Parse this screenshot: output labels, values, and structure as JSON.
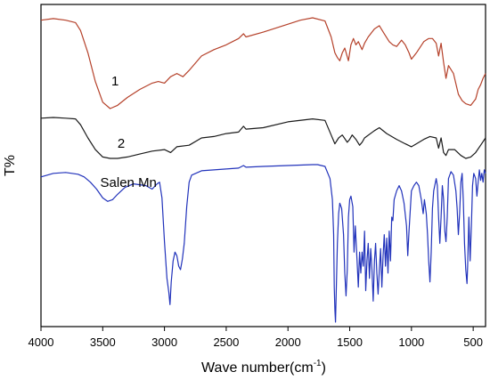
{
  "chart_data": {
    "type": "line",
    "title": "",
    "xlabel": "Wave number(cm",
    "xlabel_sup": "-1",
    "xlabel_close": ")",
    "ylabel": "T%",
    "xlim": [
      4000,
      400
    ],
    "x_reversed": true,
    "y_ticks_shown": false,
    "grid": false,
    "x_ticks": [
      4000,
      3500,
      3000,
      2500,
      2000,
      1500,
      1000,
      500
    ],
    "x_tick_labels": [
      "4000",
      "3500",
      "3000",
      "2500",
      "2000",
      "1500",
      "1000",
      "500"
    ],
    "series": [
      {
        "name": "1",
        "color": "#b5412a",
        "label_at": [
          3400,
          1
        ],
        "points": [
          [
            4000,
            1.5
          ],
          [
            3900,
            0.5
          ],
          [
            3800,
            1.5
          ],
          [
            3720,
            3
          ],
          [
            3680,
            8
          ],
          [
            3620,
            22
          ],
          [
            3560,
            40
          ],
          [
            3500,
            53
          ],
          [
            3440,
            57
          ],
          [
            3380,
            55
          ],
          [
            3300,
            50
          ],
          [
            3200,
            45
          ],
          [
            3100,
            41
          ],
          [
            3050,
            40
          ],
          [
            3000,
            41
          ],
          [
            2950,
            37
          ],
          [
            2900,
            35
          ],
          [
            2850,
            37
          ],
          [
            2800,
            33
          ],
          [
            2700,
            24
          ],
          [
            2600,
            20
          ],
          [
            2500,
            17
          ],
          [
            2400,
            13
          ],
          [
            2360,
            10
          ],
          [
            2340,
            12
          ],
          [
            2200,
            9
          ],
          [
            2000,
            4
          ],
          [
            1900,
            1.5
          ],
          [
            1800,
            0
          ],
          [
            1700,
            2
          ],
          [
            1650,
            12
          ],
          [
            1620,
            22
          ],
          [
            1600,
            25
          ],
          [
            1580,
            27
          ],
          [
            1560,
            22
          ],
          [
            1540,
            19
          ],
          [
            1510,
            27
          ],
          [
            1490,
            17
          ],
          [
            1470,
            13
          ],
          [
            1450,
            17
          ],
          [
            1430,
            15
          ],
          [
            1400,
            20
          ],
          [
            1380,
            16
          ],
          [
            1350,
            12
          ],
          [
            1300,
            7
          ],
          [
            1260,
            5
          ],
          [
            1220,
            10
          ],
          [
            1180,
            15
          ],
          [
            1150,
            17
          ],
          [
            1120,
            18
          ],
          [
            1080,
            14
          ],
          [
            1050,
            17
          ],
          [
            1020,
            22
          ],
          [
            1000,
            26
          ],
          [
            960,
            22
          ],
          [
            900,
            15
          ],
          [
            860,
            13
          ],
          [
            830,
            13
          ],
          [
            800,
            16
          ],
          [
            780,
            24
          ],
          [
            760,
            16
          ],
          [
            740,
            28
          ],
          [
            720,
            38
          ],
          [
            700,
            30
          ],
          [
            660,
            35
          ],
          [
            620,
            48
          ],
          [
            590,
            52
          ],
          [
            560,
            54
          ],
          [
            520,
            55
          ],
          [
            480,
            51
          ],
          [
            460,
            45
          ],
          [
            440,
            42
          ],
          [
            420,
            38
          ],
          [
            400,
            35
          ]
        ]
      },
      {
        "name": "2",
        "color": "#1a1a1a",
        "label_at": [
          3350,
          2
        ],
        "points": [
          [
            4000,
            0.5
          ],
          [
            3900,
            0
          ],
          [
            3800,
            0.5
          ],
          [
            3720,
            1
          ],
          [
            3680,
            5
          ],
          [
            3620,
            14
          ],
          [
            3560,
            22
          ],
          [
            3500,
            27
          ],
          [
            3440,
            28
          ],
          [
            3380,
            28
          ],
          [
            3300,
            27
          ],
          [
            3200,
            25
          ],
          [
            3100,
            23
          ],
          [
            3000,
            22
          ],
          [
            2950,
            24
          ],
          [
            2900,
            20
          ],
          [
            2800,
            19
          ],
          [
            2700,
            14
          ],
          [
            2600,
            13
          ],
          [
            2500,
            11
          ],
          [
            2400,
            10
          ],
          [
            2360,
            6
          ],
          [
            2340,
            8
          ],
          [
            2200,
            7
          ],
          [
            2000,
            3
          ],
          [
            1800,
            1
          ],
          [
            1700,
            2
          ],
          [
            1650,
            12
          ],
          [
            1620,
            18
          ],
          [
            1590,
            14
          ],
          [
            1560,
            12
          ],
          [
            1520,
            17
          ],
          [
            1500,
            15
          ],
          [
            1480,
            12
          ],
          [
            1450,
            15
          ],
          [
            1420,
            19
          ],
          [
            1400,
            17
          ],
          [
            1380,
            14
          ],
          [
            1300,
            9
          ],
          [
            1260,
            7
          ],
          [
            1200,
            11
          ],
          [
            1120,
            15
          ],
          [
            1050,
            18
          ],
          [
            1000,
            20
          ],
          [
            960,
            18
          ],
          [
            900,
            15
          ],
          [
            850,
            13
          ],
          [
            800,
            14
          ],
          [
            780,
            21
          ],
          [
            760,
            14
          ],
          [
            740,
            24
          ],
          [
            720,
            26
          ],
          [
            700,
            22
          ],
          [
            650,
            22
          ],
          [
            600,
            26
          ],
          [
            560,
            28
          ],
          [
            520,
            27
          ],
          [
            480,
            24
          ],
          [
            440,
            19
          ],
          [
            400,
            14
          ]
        ]
      },
      {
        "name": "Salen Mn",
        "color": "#2233bb",
        "label_at": [
          3520,
          3
        ],
        "points": [
          [
            4000,
            7
          ],
          [
            3900,
            5
          ],
          [
            3800,
            4.5
          ],
          [
            3700,
            5.5
          ],
          [
            3650,
            7
          ],
          [
            3600,
            10
          ],
          [
            3550,
            14
          ],
          [
            3500,
            19
          ],
          [
            3460,
            21
          ],
          [
            3420,
            20
          ],
          [
            3380,
            17
          ],
          [
            3320,
            13
          ],
          [
            3250,
            11
          ],
          [
            3150,
            12
          ],
          [
            3100,
            14
          ],
          [
            3060,
            11
          ],
          [
            3040,
            10
          ],
          [
            3020,
            19
          ],
          [
            3000,
            44
          ],
          [
            2980,
            65
          ],
          [
            2965,
            73
          ],
          [
            2955,
            80
          ],
          [
            2945,
            67
          ],
          [
            2930,
            55
          ],
          [
            2915,
            50
          ],
          [
            2900,
            52
          ],
          [
            2885,
            58
          ],
          [
            2870,
            60
          ],
          [
            2855,
            54
          ],
          [
            2840,
            45
          ],
          [
            2820,
            24
          ],
          [
            2800,
            10
          ],
          [
            2780,
            6
          ],
          [
            2700,
            3.5
          ],
          [
            2600,
            3
          ],
          [
            2500,
            2.5
          ],
          [
            2400,
            2
          ],
          [
            2360,
            0.5
          ],
          [
            2340,
            1.5
          ],
          [
            2200,
            1
          ],
          [
            2000,
            0.5
          ],
          [
            1800,
            0
          ],
          [
            1760,
            0
          ],
          [
            1700,
            1
          ],
          [
            1660,
            8
          ],
          [
            1640,
            20
          ],
          [
            1630,
            40
          ],
          [
            1625,
            70
          ],
          [
            1620,
            83
          ],
          [
            1615,
            90
          ],
          [
            1610,
            75
          ],
          [
            1600,
            45
          ],
          [
            1590,
            28
          ],
          [
            1580,
            22
          ],
          [
            1565,
            25
          ],
          [
            1550,
            40
          ],
          [
            1540,
            62
          ],
          [
            1530,
            75
          ],
          [
            1520,
            60
          ],
          [
            1510,
            30
          ],
          [
            1500,
            20
          ],
          [
            1490,
            18
          ],
          [
            1475,
            24
          ],
          [
            1465,
            50
          ],
          [
            1455,
            35
          ],
          [
            1440,
            55
          ],
          [
            1430,
            70
          ],
          [
            1420,
            50
          ],
          [
            1410,
            62
          ],
          [
            1400,
            50
          ],
          [
            1390,
            58
          ],
          [
            1380,
            38
          ],
          [
            1370,
            72
          ],
          [
            1360,
            55
          ],
          [
            1350,
            45
          ],
          [
            1340,
            65
          ],
          [
            1330,
            48
          ],
          [
            1320,
            60
          ],
          [
            1310,
            78
          ],
          [
            1300,
            55
          ],
          [
            1290,
            45
          ],
          [
            1280,
            62
          ],
          [
            1270,
            74
          ],
          [
            1260,
            60
          ],
          [
            1250,
            48
          ],
          [
            1240,
            70
          ],
          [
            1230,
            52
          ],
          [
            1220,
            40
          ],
          [
            1210,
            58
          ],
          [
            1200,
            42
          ],
          [
            1190,
            62
          ],
          [
            1180,
            38
          ],
          [
            1170,
            55
          ],
          [
            1160,
            30
          ],
          [
            1150,
            32
          ],
          [
            1140,
            20
          ],
          [
            1120,
            15
          ],
          [
            1100,
            12
          ],
          [
            1080,
            15
          ],
          [
            1060,
            22
          ],
          [
            1040,
            35
          ],
          [
            1030,
            52
          ],
          [
            1020,
            38
          ],
          [
            1000,
            15
          ],
          [
            980,
            12
          ],
          [
            960,
            10
          ],
          [
            940,
            12
          ],
          [
            920,
            20
          ],
          [
            905,
            28
          ],
          [
            895,
            20
          ],
          [
            880,
            28
          ],
          [
            870,
            40
          ],
          [
            860,
            55
          ],
          [
            850,
            67
          ],
          [
            840,
            50
          ],
          [
            830,
            25
          ],
          [
            820,
            15
          ],
          [
            800,
            8
          ],
          [
            790,
            12
          ],
          [
            780,
            30
          ],
          [
            770,
            45
          ],
          [
            760,
            30
          ],
          [
            750,
            12
          ],
          [
            740,
            20
          ],
          [
            730,
            38
          ],
          [
            720,
            44
          ],
          [
            710,
            30
          ],
          [
            700,
            8
          ],
          [
            680,
            4
          ],
          [
            660,
            6
          ],
          [
            640,
            15
          ],
          [
            630,
            25
          ],
          [
            620,
            40
          ],
          [
            610,
            28
          ],
          [
            600,
            10
          ],
          [
            590,
            5
          ],
          [
            580,
            20
          ],
          [
            570,
            45
          ],
          [
            560,
            60
          ],
          [
            550,
            68
          ],
          [
            545,
            58
          ],
          [
            535,
            30
          ],
          [
            525,
            55
          ],
          [
            515,
            35
          ],
          [
            505,
            12
          ],
          [
            495,
            5
          ],
          [
            480,
            8
          ],
          [
            470,
            18
          ],
          [
            460,
            10
          ],
          [
            450,
            3
          ],
          [
            440,
            9
          ],
          [
            430,
            5
          ],
          [
            420,
            10
          ],
          [
            410,
            3
          ],
          [
            400,
            5
          ]
        ]
      }
    ]
  }
}
